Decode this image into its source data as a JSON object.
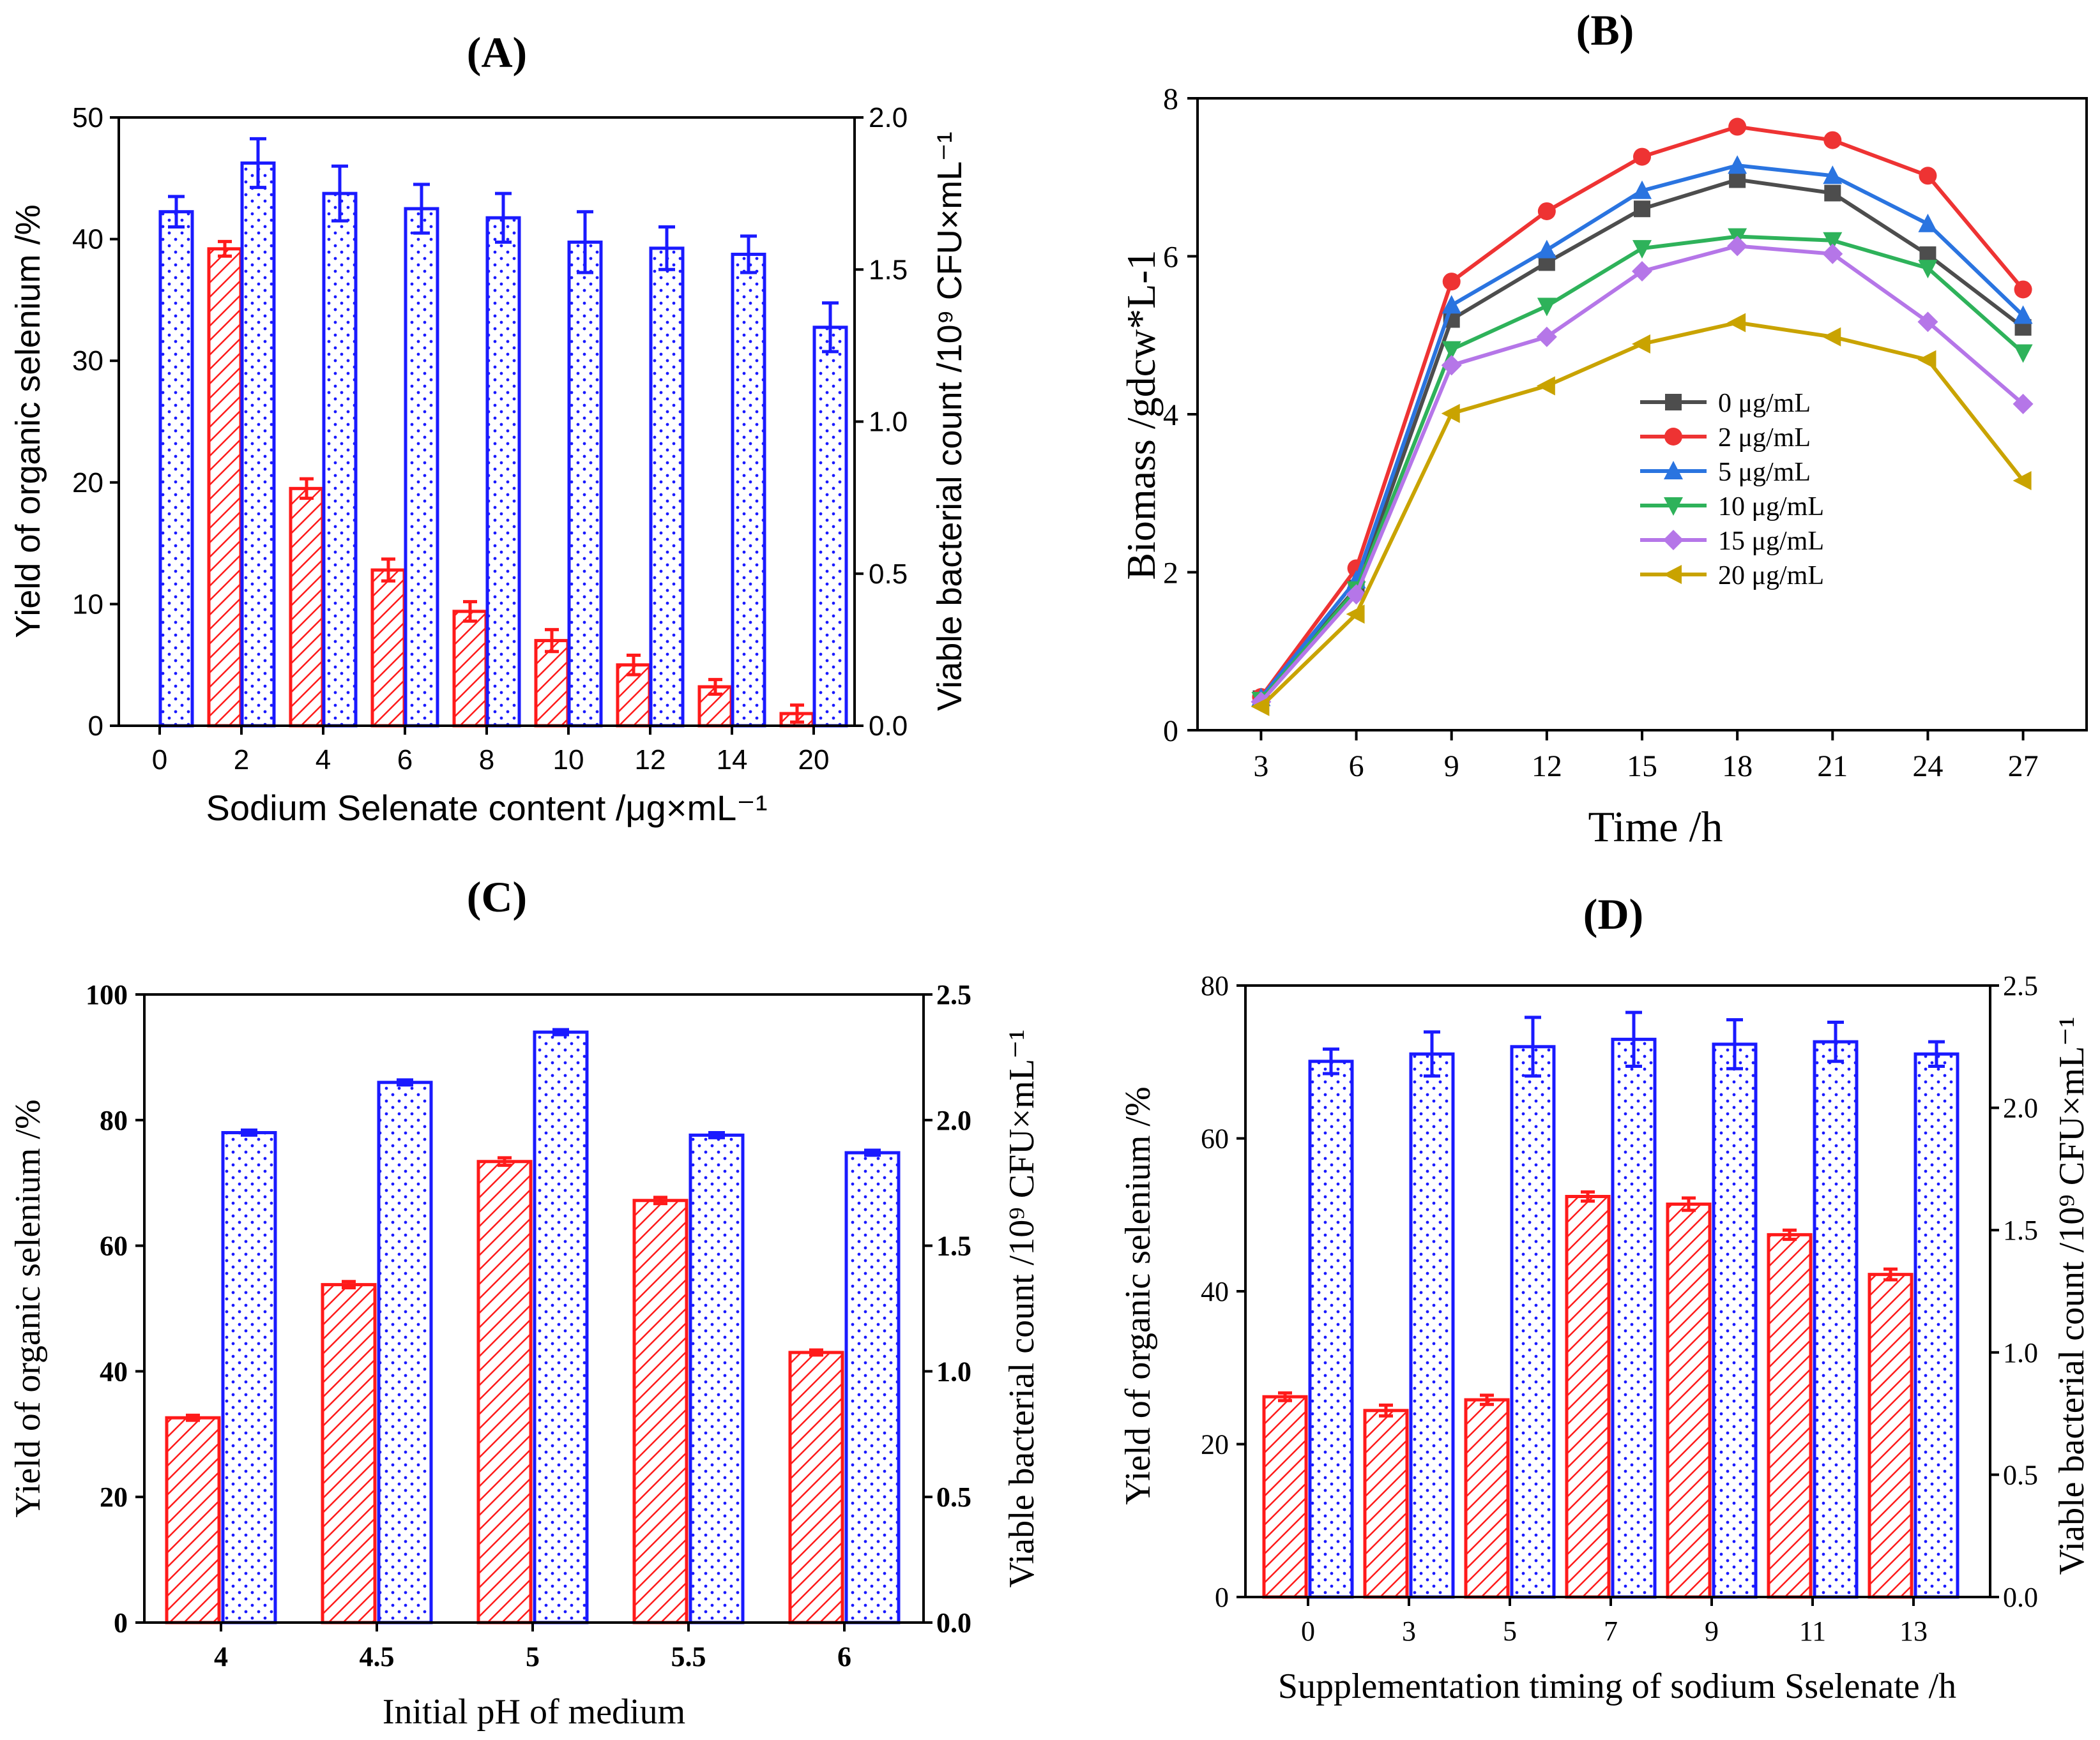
{
  "colors": {
    "red": "#ff1a1a",
    "blue": "#1a1aff",
    "black": "#000000"
  },
  "chart_data": [
    {
      "id": "A",
      "type": "bar",
      "panel_label": "(A)",
      "categories": [
        "0",
        "2",
        "4",
        "6",
        "8",
        "10",
        "12",
        "14",
        "20"
      ],
      "xlabel": "Sodium Selenate content /μg×mL⁻¹",
      "ylabel": "Yield of organic selenium /%",
      "ylabel_right": "Viable bacterial count /10⁹ CFU×mL⁻¹",
      "ylim": [
        0,
        50
      ],
      "yticks": [
        0,
        10,
        20,
        30,
        40,
        50
      ],
      "ylim_right": [
        0,
        2.0
      ],
      "yticks_right": [
        "0.0",
        "0.5",
        "1.0",
        "1.5",
        "2.0"
      ],
      "series": [
        {
          "name": "Yield of organic selenium",
          "axis": "left",
          "color": "#ff1a1a",
          "pattern": "hatch",
          "values": [
            null,
            39.2,
            19.5,
            12.8,
            9.4,
            7.0,
            5.0,
            3.2,
            1.0
          ],
          "errors": [
            null,
            0.6,
            0.8,
            0.9,
            0.8,
            0.9,
            0.8,
            0.6,
            0.7
          ]
        },
        {
          "name": "Viable bacterial count",
          "axis": "right",
          "color": "#1a1aff",
          "pattern": "dots",
          "values": [
            1.69,
            1.85,
            1.75,
            1.7,
            1.67,
            1.59,
            1.57,
            1.55,
            1.31
          ],
          "errors": [
            0.05,
            0.08,
            0.09,
            0.08,
            0.08,
            0.1,
            0.07,
            0.06,
            0.08
          ]
        }
      ]
    },
    {
      "id": "B",
      "type": "line",
      "panel_label": "(B)",
      "x": [
        3,
        6,
        9,
        12,
        15,
        18,
        21,
        24,
        27
      ],
      "xlabel": "Time /h",
      "ylabel": "Biomass /gdcw*L-1",
      "xlim": [
        1,
        29
      ],
      "ylim": [
        0,
        8
      ],
      "yticks": [
        0,
        2,
        4,
        6,
        8
      ],
      "legend_position": "center-right",
      "series": [
        {
          "name": "0 μg/mL",
          "color": "#4d4d4d",
          "marker": "square",
          "values": [
            0.4,
            1.8,
            5.2,
            5.92,
            6.6,
            6.97,
            6.8,
            6.02,
            5.1
          ]
        },
        {
          "name": "2 μg/mL",
          "color": "#ee3333",
          "marker": "circle",
          "values": [
            0.42,
            2.05,
            5.68,
            6.57,
            7.26,
            7.64,
            7.47,
            7.02,
            5.58
          ]
        },
        {
          "name": "5 μg/mL",
          "color": "#2a74e0",
          "marker": "triangle-up",
          "values": [
            0.41,
            1.9,
            5.38,
            6.08,
            6.83,
            7.15,
            7.02,
            6.41,
            5.25
          ]
        },
        {
          "name": "10 μg/mL",
          "color": "#2eb25a",
          "marker": "triangle-down",
          "values": [
            0.38,
            1.78,
            4.82,
            5.37,
            6.1,
            6.25,
            6.2,
            5.85,
            4.78
          ]
        },
        {
          "name": "15 μg/mL",
          "color": "#b576e8",
          "marker": "diamond",
          "values": [
            0.36,
            1.72,
            4.62,
            4.98,
            5.81,
            6.13,
            6.03,
            5.17,
            4.13
          ]
        },
        {
          "name": "20 μg/mL",
          "color": "#c9a300",
          "marker": "triangle-left",
          "values": [
            0.3,
            1.47,
            4.01,
            4.36,
            4.89,
            5.16,
            4.98,
            4.69,
            3.16
          ]
        }
      ]
    },
    {
      "id": "C",
      "type": "bar",
      "panel_label": "(C)",
      "categories": [
        "4",
        "4.5",
        "5",
        "5.5",
        "6"
      ],
      "xlabel": "Initial pH of medium",
      "ylabel": "Yield of organic selenium /%",
      "ylabel_right": "Viable bacterial count /10⁹ CFU×mL⁻¹",
      "ylim": [
        0,
        100
      ],
      "yticks": [
        0,
        20,
        40,
        60,
        80,
        100
      ],
      "ylim_right": [
        0,
        2.5
      ],
      "yticks_right": [
        "0.0",
        "0.5",
        "1.0",
        "1.5",
        "2.0",
        "2.5"
      ],
      "series": [
        {
          "name": "Yield of organic selenium",
          "axis": "left",
          "color": "#ff1a1a",
          "pattern": "hatch",
          "values": [
            32.6,
            53.8,
            73.4,
            67.2,
            43.0
          ],
          "errors": [
            0.4,
            0.5,
            0.6,
            0.5,
            0.4
          ]
        },
        {
          "name": "Viable bacterial count",
          "axis": "right",
          "color": "#1a1aff",
          "pattern": "dots",
          "values": [
            1.95,
            2.15,
            2.35,
            1.94,
            1.87
          ],
          "errors": [
            0.01,
            0.01,
            0.01,
            0.01,
            0.01
          ]
        }
      ]
    },
    {
      "id": "D",
      "type": "bar",
      "panel_label": "(D)",
      "categories": [
        "0",
        "3",
        "5",
        "7",
        "9",
        "11",
        "13"
      ],
      "xlabel": "Supplementation timing of sodium Sselenate /h",
      "ylabel": "Yield of organic selenium /%",
      "ylabel_right": "Viable bacterial count /10⁹ CFU×mL⁻¹",
      "ylim": [
        0,
        80
      ],
      "yticks": [
        0,
        20,
        40,
        60,
        80
      ],
      "ylim_right": [
        0,
        2.5
      ],
      "yticks_right": [
        "0.0",
        "0.5",
        "1.0",
        "1.5",
        "2.0",
        "2.5"
      ],
      "series": [
        {
          "name": "Yield of organic selenium",
          "axis": "left",
          "color": "#ff1a1a",
          "pattern": "hatch",
          "values": [
            26.2,
            24.4,
            25.8,
            52.4,
            51.4,
            47.4,
            42.2
          ],
          "errors": [
            0.5,
            0.7,
            0.6,
            0.6,
            0.8,
            0.6,
            0.7
          ]
        },
        {
          "name": "Viable bacterial count",
          "axis": "right",
          "color": "#1a1aff",
          "pattern": "dots",
          "values": [
            2.19,
            2.22,
            2.25,
            2.28,
            2.26,
            2.27,
            2.22
          ],
          "errors": [
            0.05,
            0.09,
            0.12,
            0.11,
            0.1,
            0.08,
            0.05
          ]
        }
      ]
    }
  ]
}
